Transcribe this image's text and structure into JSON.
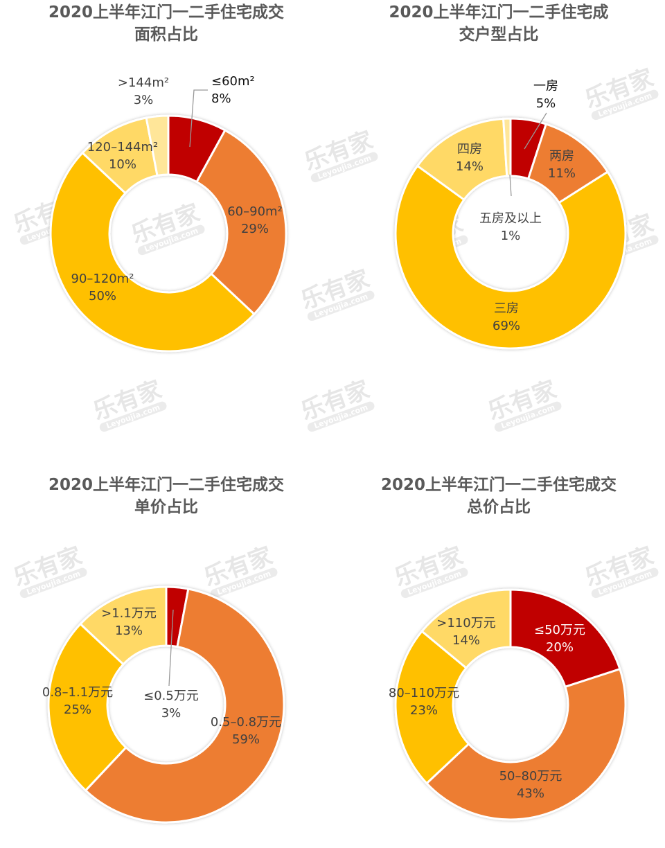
{
  "watermark": {
    "brand": "乐有家",
    "site": "Leyoujia.com"
  },
  "colors": {
    "red": "#C00000",
    "orange": "#ED7D31",
    "gold": "#FFC000",
    "yellow": "#FFD966",
    "pale": "#FFE699"
  },
  "chart_data": [
    {
      "type": "pie",
      "donut": true,
      "title": [
        "2020上半年江门一二手住宅成交",
        "面积占比"
      ],
      "categories": [
        "≤60㎡",
        "60-90㎡",
        "90-120㎡",
        "120-144㎡",
        ">144㎡"
      ],
      "labels": [
        "≤60m²",
        "60–90m²",
        "90–120m²",
        "120–144m²",
        ">144m²"
      ],
      "values": [
        8,
        29,
        50,
        10,
        3
      ],
      "value_labels": [
        "8%",
        "29%",
        "50%",
        "10%",
        "3%"
      ],
      "colors": [
        "#C00000",
        "#ED7D31",
        "#FFC000",
        "#FFD966",
        "#FFE699"
      ]
    },
    {
      "type": "pie",
      "donut": true,
      "title": [
        "2020上半年江门一二手住宅成",
        "交户型占比"
      ],
      "categories": [
        "一房",
        "两房",
        "三房",
        "四房",
        "五房及以上"
      ],
      "labels": [
        "一房",
        "两房",
        "三房",
        "四房",
        "五房及以上"
      ],
      "values": [
        5,
        11,
        69,
        14,
        1
      ],
      "value_labels": [
        "5%",
        "11%",
        "69%",
        "14%",
        "1%"
      ],
      "colors": [
        "#C00000",
        "#ED7D31",
        "#FFC000",
        "#FFD966",
        "#FFE699"
      ]
    },
    {
      "type": "pie",
      "donut": true,
      "title": [
        "2020上半年江门一二手住宅成交",
        "单价占比"
      ],
      "categories": [
        "≤0.5万元",
        "0.5-0.8万元",
        "0.8-1.1万元",
        ">1.1万元"
      ],
      "labels": [
        "≤0.5万元",
        "0.5–0.8万元",
        "0.8–1.1万元",
        ">1.1万元"
      ],
      "values": [
        3,
        59,
        25,
        13
      ],
      "value_labels": [
        "3%",
        "59%",
        "25%",
        "13%"
      ],
      "colors": [
        "#C00000",
        "#ED7D31",
        "#FFC000",
        "#FFD966"
      ]
    },
    {
      "type": "pie",
      "donut": true,
      "title": [
        "2020上半年江门一二手住宅成交",
        "总价占比"
      ],
      "categories": [
        "≤50万元",
        "50-80万元",
        "80-110万元",
        ">110万元"
      ],
      "labels": [
        "≤50万元",
        "50–80万元",
        "80–110万元",
        ">110万元"
      ],
      "values": [
        20,
        43,
        23,
        14
      ],
      "value_labels": [
        "20%",
        "43%",
        "23%",
        "14%"
      ],
      "colors": [
        "#C00000",
        "#ED7D31",
        "#FFC000",
        "#FFD966"
      ]
    }
  ]
}
